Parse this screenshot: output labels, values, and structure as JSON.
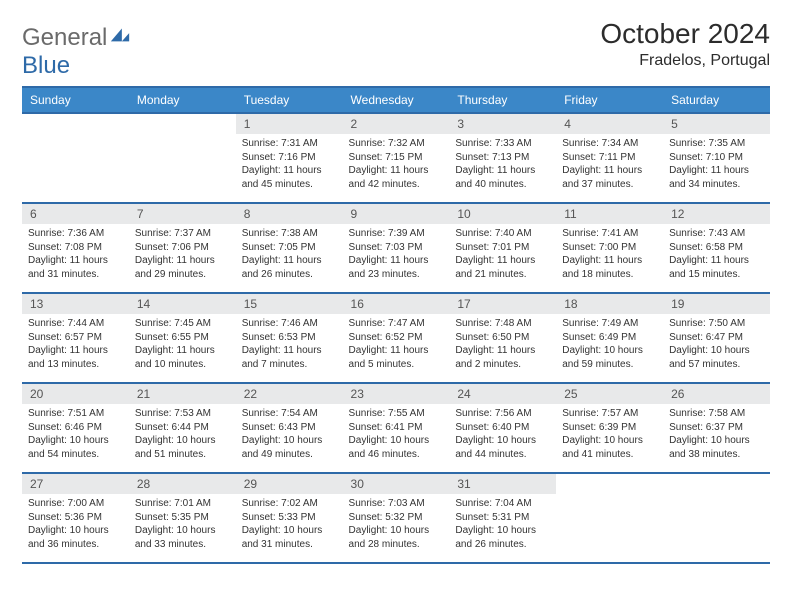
{
  "brand": {
    "part1": "General",
    "part2": "Blue"
  },
  "title": "October 2024",
  "location": "Fradelos, Portugal",
  "colors": {
    "header_bg": "#3b87c8",
    "border": "#2e6aa8",
    "daynum_bg": "#e8e9ea",
    "text": "#333333"
  },
  "dow": [
    "Sunday",
    "Monday",
    "Tuesday",
    "Wednesday",
    "Thursday",
    "Friday",
    "Saturday"
  ],
  "weeks": [
    [
      null,
      null,
      {
        "n": "1",
        "sr": "7:31 AM",
        "ss": "7:16 PM",
        "dl": "11 hours and 45 minutes."
      },
      {
        "n": "2",
        "sr": "7:32 AM",
        "ss": "7:15 PM",
        "dl": "11 hours and 42 minutes."
      },
      {
        "n": "3",
        "sr": "7:33 AM",
        "ss": "7:13 PM",
        "dl": "11 hours and 40 minutes."
      },
      {
        "n": "4",
        "sr": "7:34 AM",
        "ss": "7:11 PM",
        "dl": "11 hours and 37 minutes."
      },
      {
        "n": "5",
        "sr": "7:35 AM",
        "ss": "7:10 PM",
        "dl": "11 hours and 34 minutes."
      }
    ],
    [
      {
        "n": "6",
        "sr": "7:36 AM",
        "ss": "7:08 PM",
        "dl": "11 hours and 31 minutes."
      },
      {
        "n": "7",
        "sr": "7:37 AM",
        "ss": "7:06 PM",
        "dl": "11 hours and 29 minutes."
      },
      {
        "n": "8",
        "sr": "7:38 AM",
        "ss": "7:05 PM",
        "dl": "11 hours and 26 minutes."
      },
      {
        "n": "9",
        "sr": "7:39 AM",
        "ss": "7:03 PM",
        "dl": "11 hours and 23 minutes."
      },
      {
        "n": "10",
        "sr": "7:40 AM",
        "ss": "7:01 PM",
        "dl": "11 hours and 21 minutes."
      },
      {
        "n": "11",
        "sr": "7:41 AM",
        "ss": "7:00 PM",
        "dl": "11 hours and 18 minutes."
      },
      {
        "n": "12",
        "sr": "7:43 AM",
        "ss": "6:58 PM",
        "dl": "11 hours and 15 minutes."
      }
    ],
    [
      {
        "n": "13",
        "sr": "7:44 AM",
        "ss": "6:57 PM",
        "dl": "11 hours and 13 minutes."
      },
      {
        "n": "14",
        "sr": "7:45 AM",
        "ss": "6:55 PM",
        "dl": "11 hours and 10 minutes."
      },
      {
        "n": "15",
        "sr": "7:46 AM",
        "ss": "6:53 PM",
        "dl": "11 hours and 7 minutes."
      },
      {
        "n": "16",
        "sr": "7:47 AM",
        "ss": "6:52 PM",
        "dl": "11 hours and 5 minutes."
      },
      {
        "n": "17",
        "sr": "7:48 AM",
        "ss": "6:50 PM",
        "dl": "11 hours and 2 minutes."
      },
      {
        "n": "18",
        "sr": "7:49 AM",
        "ss": "6:49 PM",
        "dl": "10 hours and 59 minutes."
      },
      {
        "n": "19",
        "sr": "7:50 AM",
        "ss": "6:47 PM",
        "dl": "10 hours and 57 minutes."
      }
    ],
    [
      {
        "n": "20",
        "sr": "7:51 AM",
        "ss": "6:46 PM",
        "dl": "10 hours and 54 minutes."
      },
      {
        "n": "21",
        "sr": "7:53 AM",
        "ss": "6:44 PM",
        "dl": "10 hours and 51 minutes."
      },
      {
        "n": "22",
        "sr": "7:54 AM",
        "ss": "6:43 PM",
        "dl": "10 hours and 49 minutes."
      },
      {
        "n": "23",
        "sr": "7:55 AM",
        "ss": "6:41 PM",
        "dl": "10 hours and 46 minutes."
      },
      {
        "n": "24",
        "sr": "7:56 AM",
        "ss": "6:40 PM",
        "dl": "10 hours and 44 minutes."
      },
      {
        "n": "25",
        "sr": "7:57 AM",
        "ss": "6:39 PM",
        "dl": "10 hours and 41 minutes."
      },
      {
        "n": "26",
        "sr": "7:58 AM",
        "ss": "6:37 PM",
        "dl": "10 hours and 38 minutes."
      }
    ],
    [
      {
        "n": "27",
        "sr": "7:00 AM",
        "ss": "5:36 PM",
        "dl": "10 hours and 36 minutes."
      },
      {
        "n": "28",
        "sr": "7:01 AM",
        "ss": "5:35 PM",
        "dl": "10 hours and 33 minutes."
      },
      {
        "n": "29",
        "sr": "7:02 AM",
        "ss": "5:33 PM",
        "dl": "10 hours and 31 minutes."
      },
      {
        "n": "30",
        "sr": "7:03 AM",
        "ss": "5:32 PM",
        "dl": "10 hours and 28 minutes."
      },
      {
        "n": "31",
        "sr": "7:04 AM",
        "ss": "5:31 PM",
        "dl": "10 hours and 26 minutes."
      },
      null,
      null
    ]
  ],
  "labels": {
    "sunrise": "Sunrise:",
    "sunset": "Sunset:",
    "daylight": "Daylight:"
  }
}
